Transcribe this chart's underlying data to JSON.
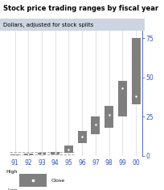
{
  "title": "Stock price trading ranges by fiscal year",
  "subtitle": "Dollars, adjusted for stock splits",
  "years": [
    "91",
    "92",
    "93",
    "94",
    "95",
    "96",
    "97",
    "98",
    "99",
    "00"
  ],
  "low": [
    0.3,
    0.5,
    0.8,
    1.0,
    2.0,
    8.0,
    14.0,
    18.0,
    25.0,
    33.0
  ],
  "high": [
    0.8,
    1.2,
    2.0,
    2.5,
    6.5,
    16.0,
    25.0,
    32.0,
    48.0,
    75.0
  ],
  "close": [
    0.5,
    0.9,
    1.5,
    1.8,
    4.0,
    12.0,
    20.0,
    26.0,
    43.0,
    38.0
  ],
  "bar_color": "#7f7f7f",
  "line_color": "#aaaaaa",
  "close_dot_color": "#ffffff",
  "axis_color": "#3355bb",
  "text_color": "#000000",
  "title_color": "#000000",
  "subtitle_bg": "#cdd5e0",
  "ylim": [
    0,
    80
  ],
  "yticks": [
    0,
    25,
    50,
    75
  ],
  "background_color": "#ffffff",
  "grid_color": "#cccccc",
  "figsize": [
    2.04,
    2.35
  ],
  "dpi": 100
}
